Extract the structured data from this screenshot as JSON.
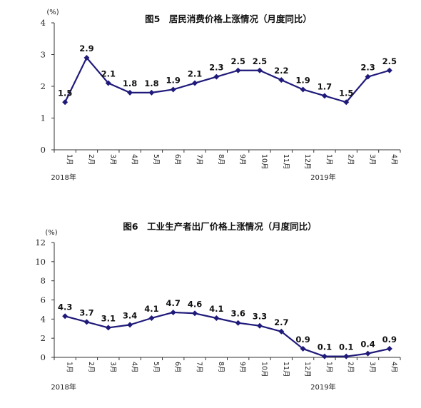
{
  "colors": {
    "series": "#1f1a7a",
    "axis": "#333333"
  },
  "chart_data": [
    {
      "type": "line",
      "title": "图5　居民消费价格上涨情况（月度同比）",
      "unit": "(%)",
      "categories": [
        "1月",
        "2月",
        "3月",
        "4月",
        "5月",
        "6月",
        "7月",
        "8月",
        "9月",
        "10月",
        "11月",
        "12月",
        "1月",
        "2月",
        "3月",
        "4月"
      ],
      "year_labels": [
        {
          "text": "2018年",
          "index": 0
        },
        {
          "text": "2019年",
          "index": 12
        }
      ],
      "series": [
        {
          "values": [
            1.5,
            2.9,
            2.1,
            1.8,
            1.8,
            1.9,
            2.1,
            2.3,
            2.5,
            2.5,
            2.2,
            1.9,
            1.7,
            1.5,
            2.3,
            2.5
          ]
        }
      ],
      "data_labels": [
        "1.5",
        "2.9",
        "2.1",
        "1.8",
        "1.8",
        "1.9",
        "2.1",
        "2.3",
        "2.5",
        "2.5",
        "2.2",
        "1.9",
        "1.7",
        "1.5",
        "2.3",
        "2.5"
      ],
      "ylim": [
        0,
        4
      ],
      "yticks": [
        "0",
        "1",
        "2",
        "3",
        "4"
      ],
      "grid": false
    },
    {
      "type": "line",
      "title": "图6　工业生产者出厂价格上涨情况（月度同比）",
      "unit": "(%)",
      "categories": [
        "1月",
        "2月",
        "3月",
        "4月",
        "5月",
        "6月",
        "7月",
        "8月",
        "9月",
        "10月",
        "11月",
        "12月",
        "1月",
        "2月",
        "3月",
        "4月"
      ],
      "year_labels": [
        {
          "text": "2018年",
          "index": 0
        },
        {
          "text": "2019年",
          "index": 12
        }
      ],
      "series": [
        {
          "values": [
            4.3,
            3.7,
            3.1,
            3.4,
            4.1,
            4.7,
            4.6,
            4.1,
            3.6,
            3.3,
            2.7,
            0.9,
            0.1,
            0.1,
            0.4,
            0.9
          ]
        }
      ],
      "data_labels": [
        "4.3",
        "3.7",
        "3.1",
        "3.4",
        "4.1",
        "4.7",
        "4.6",
        "4.1",
        "3.6",
        "3.3",
        "2.7",
        "0.9",
        "0.1",
        "0.1",
        "0.4",
        "0.9"
      ],
      "ylim": [
        0,
        12
      ],
      "yticks": [
        "0",
        "2",
        "4",
        "6",
        "8",
        "10",
        "12"
      ],
      "grid": false
    }
  ]
}
